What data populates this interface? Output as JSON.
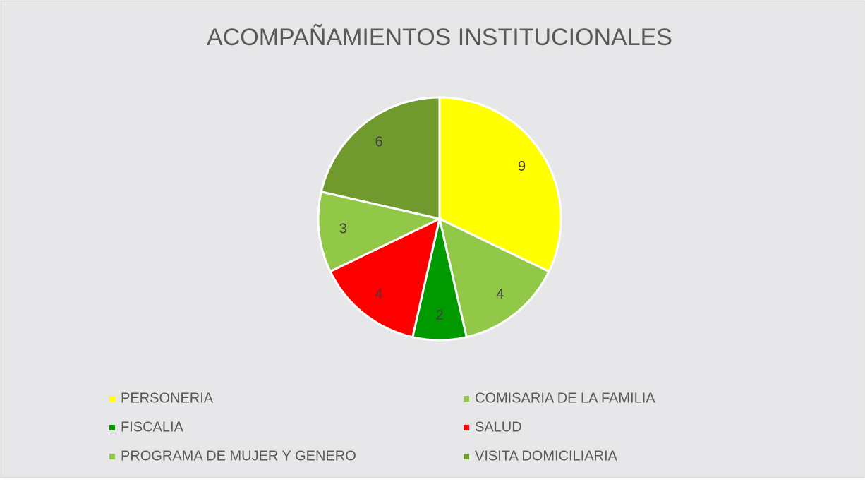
{
  "chart_data": {
    "type": "pie",
    "title": "ACOMPAÑAMIENTOS INSTITUCIONALES",
    "categories": [
      "PERSONERIA",
      "COMISARIA DE LA FAMILIA",
      "FISCALIA",
      "SALUD",
      "PROGRAMA DE MUJER Y GENERO",
      "VISITA DOMICILIARIA"
    ],
    "values": [
      9,
      4,
      2,
      4,
      3,
      6
    ],
    "colors": [
      "#ffff00",
      "#92c847",
      "#009a00",
      "#ff0000",
      "#92c847",
      "#70992e"
    ],
    "legend": "bottom"
  }
}
